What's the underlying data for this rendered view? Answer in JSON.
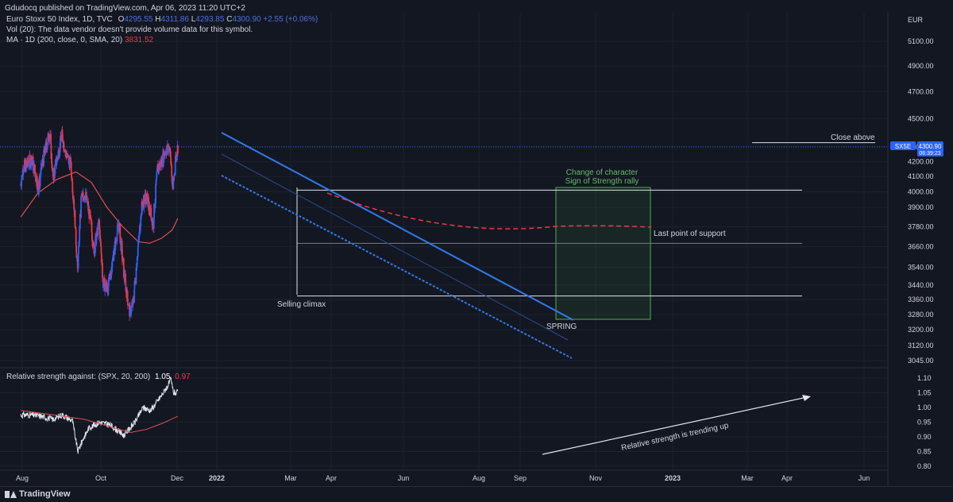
{
  "published_by": "Gdudocq published on TradingView.com, Apr 06, 2023 11:20 UTC+2",
  "brand": "TradingView",
  "legend": {
    "symbol": "Euro Stoxx 50 Index, 1D, TVC",
    "open_label": "O",
    "open": "4295.55",
    "high_label": "H",
    "high": "4311.86",
    "low_label": "L",
    "low": "4293.85",
    "close_label": "C",
    "close": "4300.90",
    "change": "+2.55 (+0.06%)",
    "vol_line": "Vol (20): The data vendor doesn't provide volume data for this symbol.",
    "ma_line": "MA · 1D (200, close, 0, SMA, 20)",
    "ma_value": "3831.52",
    "rs_line": "Relative strength against: (SPX, 20, 200)",
    "rs_value": "1.05",
    "rs_ma_value": "0.97"
  },
  "colors": {
    "background": "#131722",
    "up_candle": "#2962ff",
    "down_candle": "#f23645",
    "ma": "#e05050",
    "channel": "#2f7be8",
    "box": "#4caf50",
    "annotation_green": "#66bb6a",
    "grid": "#1e222d",
    "text": "#d1d4dc"
  },
  "currency": "EUR",
  "price_tag": {
    "symbol": "SX5E",
    "price": "4300.90",
    "countdown": "06:39:23"
  },
  "annotations": {
    "change_of_character": "Change of character",
    "sign_of_strength": "Sign of Strength rally",
    "close_above": "Close above",
    "last_point_of_support": "Last point of support",
    "selling_climax": "Selling climax",
    "spring": "SPRING",
    "rs_trending": "Relative strength is trending up"
  },
  "chart_data": [
    {
      "type": "candlestick",
      "symbol": "Euro Stoxx 50 Index",
      "interval": "1D",
      "price_axis_ticks": [
        "5100.00",
        "4900.00",
        "4700.00",
        "4500.00",
        "4300.00",
        "4200.00",
        "4100.00",
        "4000.00",
        "3900.00",
        "3780.00",
        "3660.00",
        "3540.00",
        "3440.00",
        "3360.00",
        "3280.00",
        "3200.00",
        "3120.00",
        "3045.00"
      ],
      "time_axis_ticks": [
        "Aug",
        "Oct",
        "Dec",
        "2022",
        "Mar",
        "Apr",
        "Jun",
        "Aug",
        "Sep",
        "Nov",
        "2023",
        "Mar",
        "Apr",
        "Jun"
      ],
      "price_path": [
        [
          "2021-07-26",
          4050
        ],
        [
          "2021-08-05",
          4160
        ],
        [
          "2021-08-20",
          4180
        ],
        [
          "2021-09-06",
          4220
        ],
        [
          "2021-09-20",
          4130
        ],
        [
          "2021-10-04",
          4020
        ],
        [
          "2021-10-18",
          4180
        ],
        [
          "2021-11-01",
          4290
        ],
        [
          "2021-11-17",
          4400
        ],
        [
          "2021-11-30",
          4090
        ],
        [
          "2021-12-14",
          4200
        ],
        [
          "2022-01-05",
          4380
        ],
        [
          "2022-01-20",
          4250
        ],
        [
          "2022-02-08",
          4180
        ],
        [
          "2022-02-24",
          3850
        ],
        [
          "2022-03-07",
          3500
        ],
        [
          "2022-03-21",
          3950
        ],
        [
          "2022-04-05",
          3990
        ],
        [
          "2022-04-25",
          3840
        ],
        [
          "2022-05-10",
          3640
        ],
        [
          "2022-05-31",
          3800
        ],
        [
          "2022-06-16",
          3450
        ],
        [
          "2022-07-05",
          3420
        ],
        [
          "2022-07-20",
          3550
        ],
        [
          "2022-08-16",
          3800
        ],
        [
          "2022-09-06",
          3500
        ],
        [
          "2022-09-22",
          3350
        ],
        [
          "2022-09-29",
          3290
        ],
        [
          "2022-10-12",
          3340
        ],
        [
          "2022-10-28",
          3600
        ],
        [
          "2022-11-15",
          3900
        ],
        [
          "2022-11-30",
          3970
        ],
        [
          "2022-12-15",
          3900
        ],
        [
          "2022-12-30",
          3800
        ],
        [
          "2023-01-16",
          4150
        ],
        [
          "2023-02-01",
          4200
        ],
        [
          "2023-02-15",
          4270
        ],
        [
          "2023-03-06",
          4300
        ],
        [
          "2023-03-13",
          4100
        ],
        [
          "2023-03-17",
          4010
        ],
        [
          "2023-03-28",
          4220
        ],
        [
          "2023-04-06",
          4300
        ]
      ],
      "ma_path": [
        [
          "2021-07-26",
          3840
        ],
        [
          "2021-10-01",
          3990
        ],
        [
          "2021-12-15",
          4080
        ],
        [
          "2022-03-01",
          4130
        ],
        [
          "2022-05-01",
          4060
        ],
        [
          "2022-07-01",
          3900
        ],
        [
          "2022-09-01",
          3780
        ],
        [
          "2022-11-01",
          3690
        ],
        [
          "2022-12-15",
          3680
        ],
        [
          "2023-02-01",
          3710
        ],
        [
          "2023-03-15",
          3760
        ],
        [
          "2023-04-06",
          3831.52
        ]
      ],
      "trading_range": {
        "top": 4010,
        "bottom": 3380,
        "mid": 3680
      },
      "close_above_level": 4330,
      "last_price": 4300.9
    },
    {
      "type": "line",
      "title": "Relative strength against: (SPX, 20, 200)",
      "y_ticks": [
        "1.10",
        "1.05",
        "1.00",
        "0.95",
        "0.90",
        "0.85",
        "0.80"
      ],
      "ylim": [
        0.79,
        1.115
      ],
      "series": [
        {
          "name": "RS",
          "points": [
            [
              "2021-07-26",
              0.975
            ],
            [
              "2021-09-01",
              0.975
            ],
            [
              "2021-10-15",
              0.97
            ],
            [
              "2021-12-01",
              0.96
            ],
            [
              "2022-01-05",
              0.975
            ],
            [
              "2022-02-15",
              0.955
            ],
            [
              "2022-03-08",
              0.85
            ],
            [
              "2022-03-25",
              0.885
            ],
            [
              "2022-04-20",
              0.93
            ],
            [
              "2022-06-01",
              0.95
            ],
            [
              "2022-07-15",
              0.94
            ],
            [
              "2022-09-05",
              0.905
            ],
            [
              "2022-10-20",
              0.95
            ],
            [
              "2022-11-20",
              1.0
            ],
            [
              "2022-12-20",
              0.99
            ],
            [
              "2023-02-01",
              1.04
            ],
            [
              "2023-03-01",
              1.08
            ],
            [
              "2023-03-10",
              1.095
            ],
            [
              "2023-03-20",
              1.05
            ],
            [
              "2023-04-06",
              1.05
            ]
          ]
        },
        {
          "name": "MA",
          "points": [
            [
              "2021-07-26",
              0.99
            ],
            [
              "2021-12-01",
              0.975
            ],
            [
              "2022-04-01",
              0.96
            ],
            [
              "2022-08-01",
              0.93
            ],
            [
              "2022-10-01",
              0.915
            ],
            [
              "2022-12-01",
              0.925
            ],
            [
              "2023-02-01",
              0.945
            ],
            [
              "2023-04-06",
              0.97
            ]
          ]
        }
      ]
    }
  ]
}
